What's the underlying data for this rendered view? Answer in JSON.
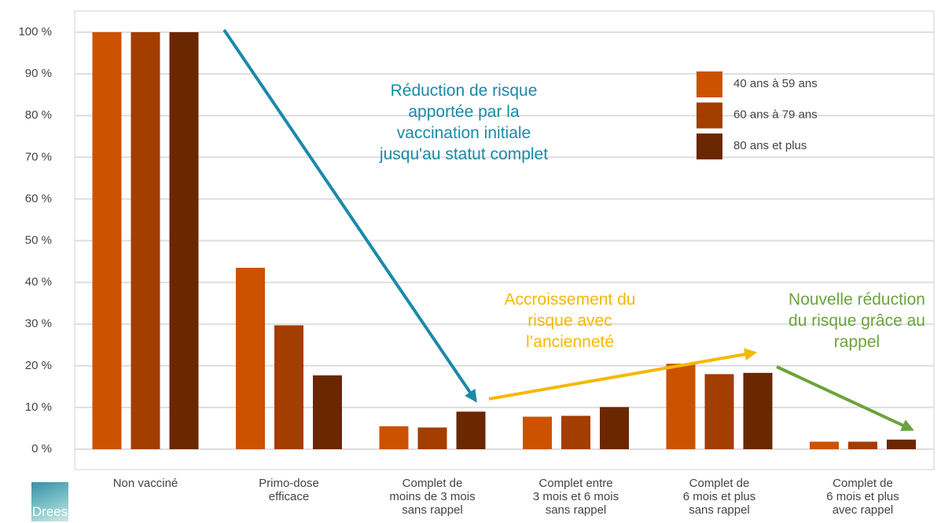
{
  "chart_data": {
    "type": "bar",
    "categories": [
      "Non vacciné",
      "Primo-dose\nefficace",
      "Complet de\nmoins de 3 mois\nsans rappel",
      "Complet entre\n3 mois et 6 mois\nsans rappel",
      "Complet de\n6 mois et plus\nsans rappel",
      "Complet de\n6 mois et plus\navec rappel"
    ],
    "series": [
      {
        "name": "40 ans à 59 ans",
        "color": "#cc5200",
        "values": [
          100,
          43.5,
          5.5,
          7.8,
          20.5,
          1.8
        ]
      },
      {
        "name": "60 ans à 79 ans",
        "color": "#a33d00",
        "values": [
          100,
          29.7,
          5.2,
          8.0,
          18.0,
          1.8
        ]
      },
      {
        "name": "80 ans et plus",
        "color": "#6b2700",
        "values": [
          100,
          17.7,
          9.0,
          10.1,
          18.3,
          2.3
        ]
      }
    ],
    "ylim": [
      0,
      100
    ],
    "yticks": [
      {
        "value": 0,
        "label": "0 %"
      },
      {
        "value": 10,
        "label": "10 %"
      },
      {
        "value": 20,
        "label": "20 %"
      },
      {
        "value": 30,
        "label": "30 %"
      },
      {
        "value": 40,
        "label": "40 %"
      },
      {
        "value": 50,
        "label": "50 %"
      },
      {
        "value": 60,
        "label": "60 %"
      },
      {
        "value": 70,
        "label": "70 %"
      },
      {
        "value": 80,
        "label": "80 %"
      },
      {
        "value": 90,
        "label": "90 %"
      },
      {
        "value": 100,
        "label": "100 %"
      }
    ],
    "grid": true,
    "legend": "top-right",
    "annotations": [
      {
        "text": "Réduction de risque\napportée par la\nvaccination initiale\njusqu'au statut complet",
        "color": "#1a8aa8"
      },
      {
        "text": "Accroissement du\nrisque avec\nl’ancienneté",
        "color": "#f5b800"
      },
      {
        "text": "Nouvelle réduction\ndu risque grâce au\nrappel",
        "color": "#6aa43c"
      }
    ]
  },
  "logo": "Drees"
}
